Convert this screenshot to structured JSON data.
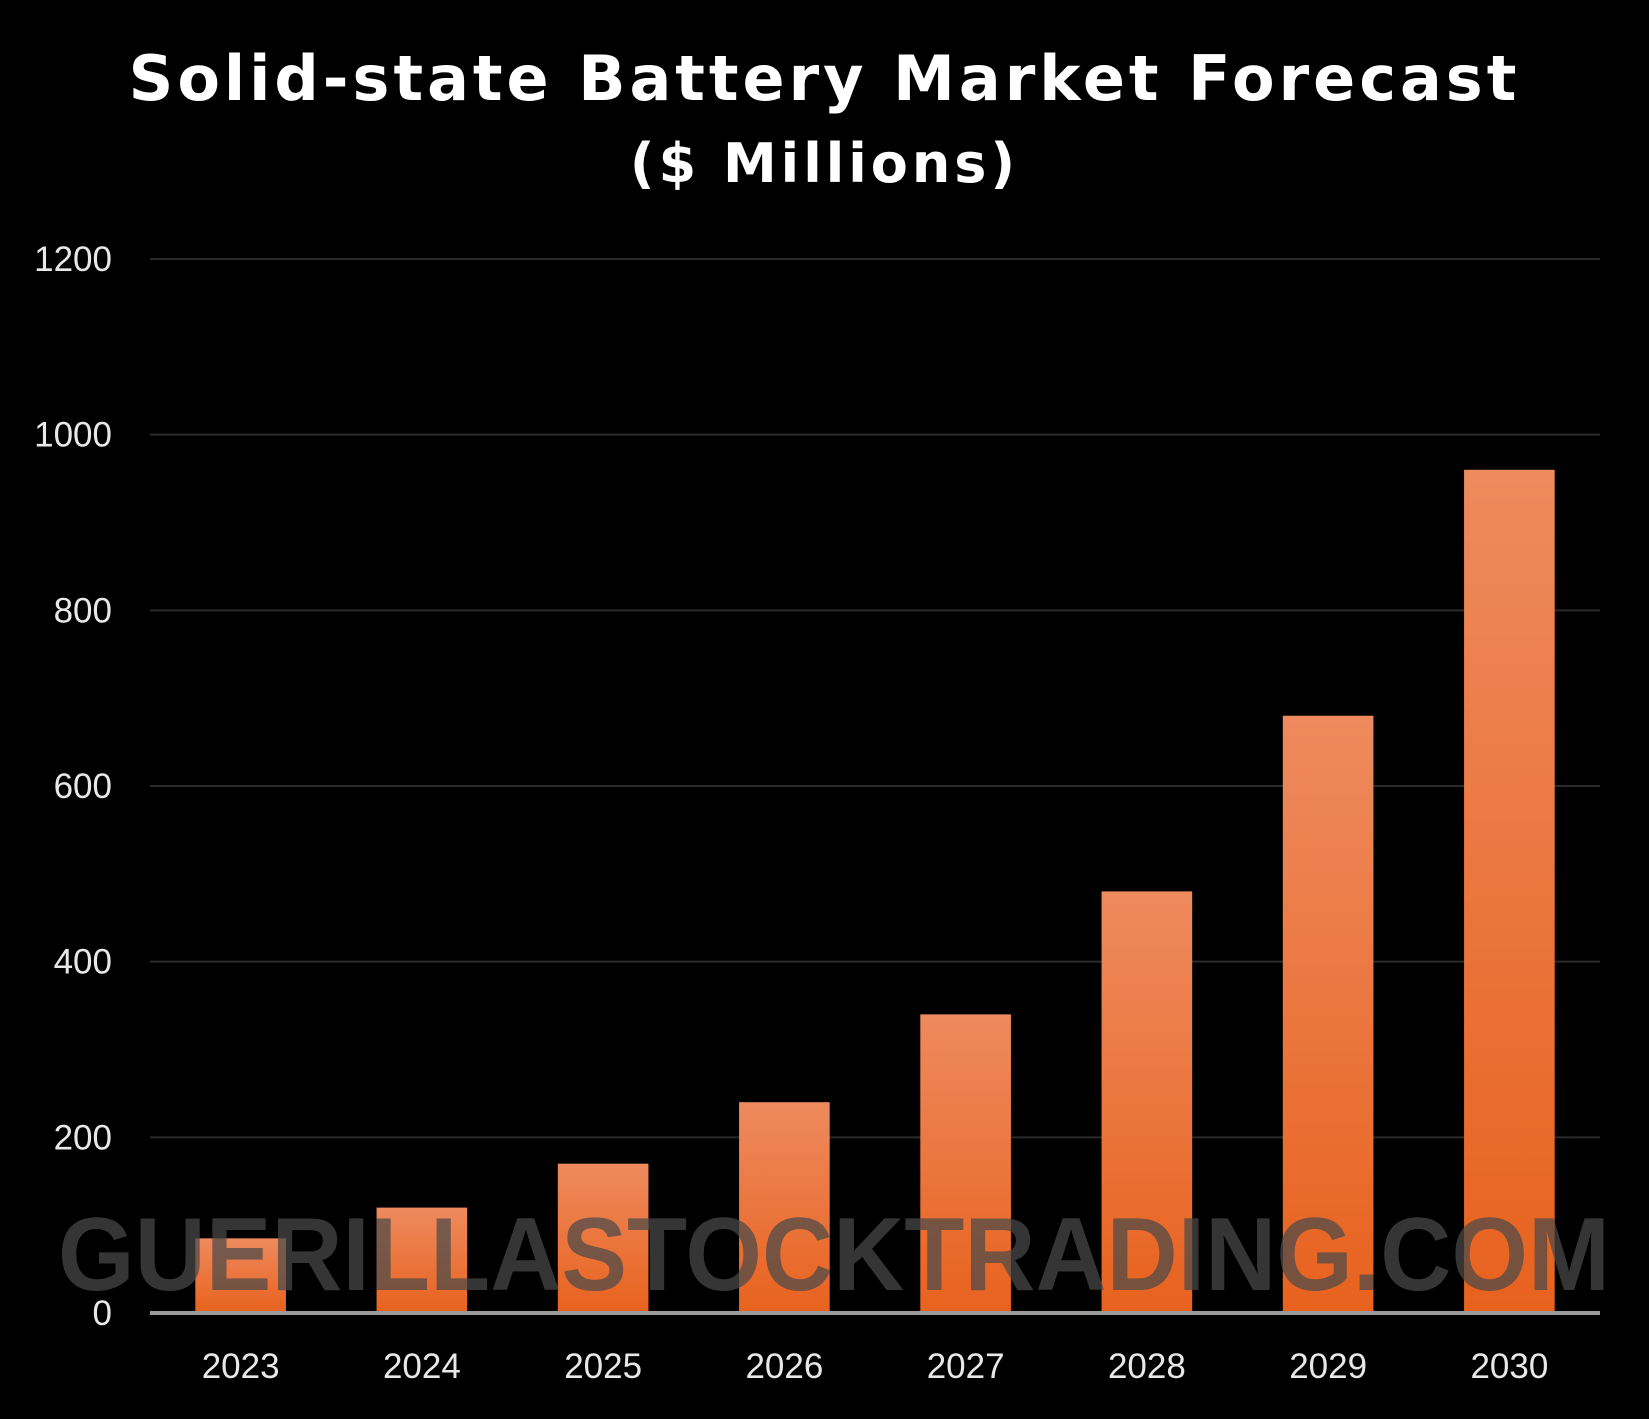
{
  "chart_data": {
    "type": "bar",
    "title": "Solid-state Battery Market Forecast",
    "subtitle": "($ Millions)",
    "xlabel": "",
    "ylabel": "",
    "categories": [
      "2023",
      "2024",
      "2025",
      "2026",
      "2027",
      "2028",
      "2029",
      "2030"
    ],
    "values": [
      85,
      120,
      170,
      240,
      340,
      480,
      680,
      960
    ],
    "ylim": [
      0,
      1200
    ],
    "yticks": [
      "0",
      "200",
      "400",
      "600",
      "800",
      "1000",
      "1200"
    ],
    "grid": true,
    "legend": "none",
    "colors": {
      "background": "#000000",
      "bar_top": "#ee8a5e",
      "bar_bottom": "#e8621e",
      "gridline": "#2a2a2a",
      "baseline": "#9a9a9a",
      "text": "#e8e8e8"
    }
  },
  "watermark": "GUERILLASTOCKTRADING.COM"
}
